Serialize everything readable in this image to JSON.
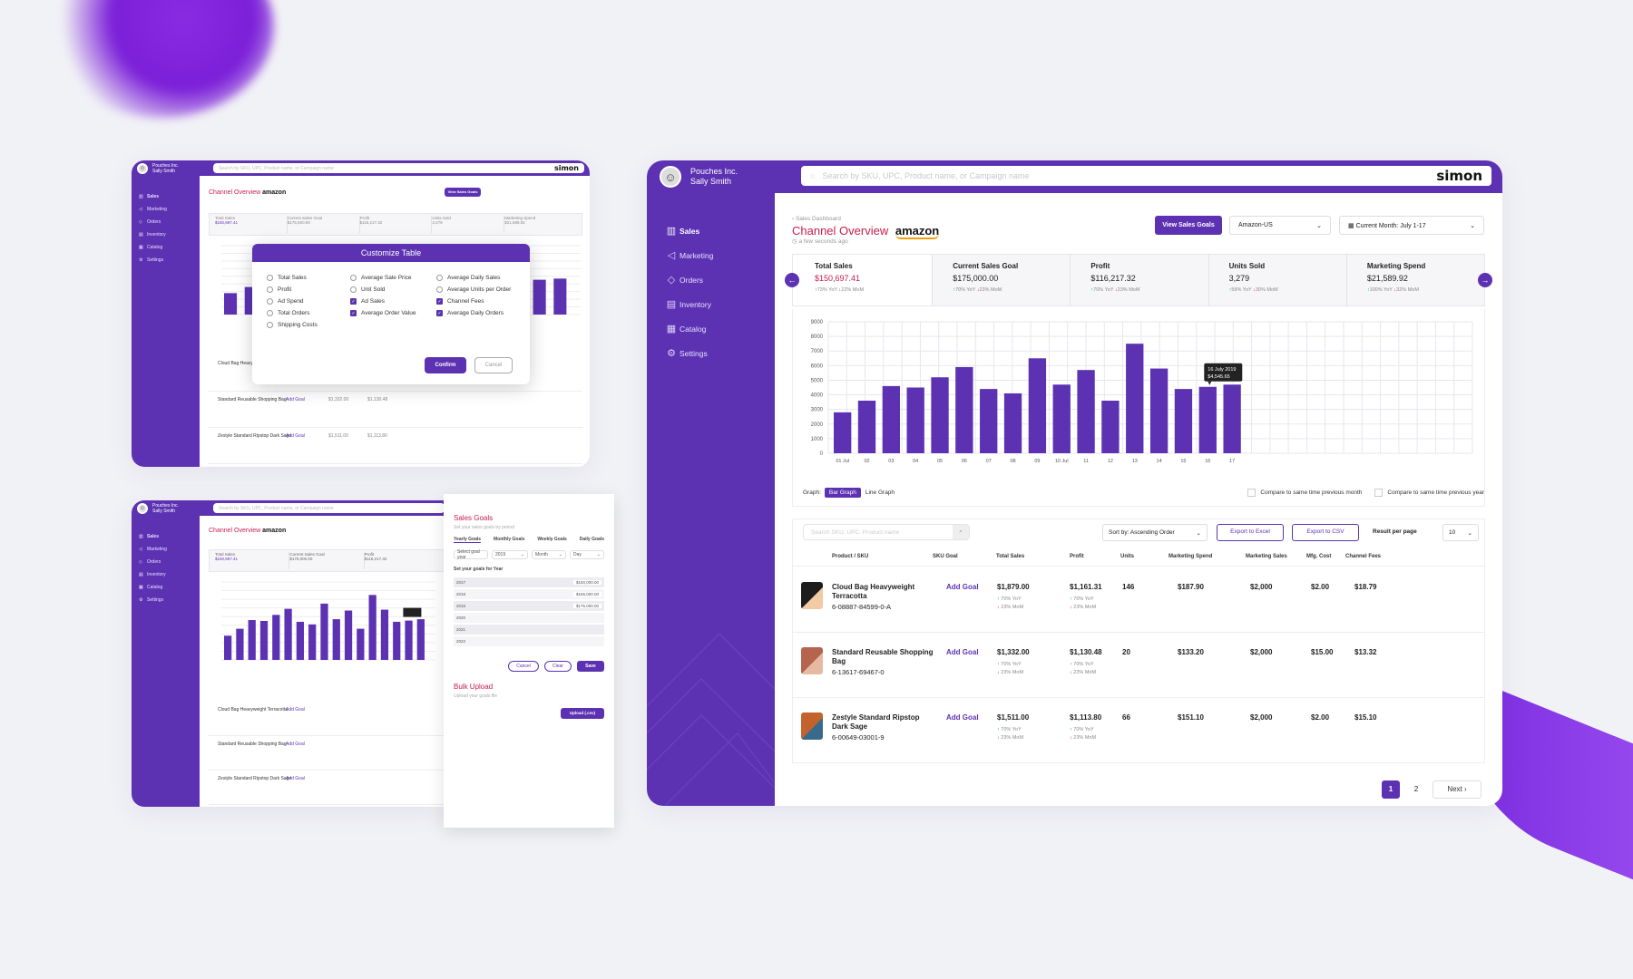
{
  "colors": {
    "primary": "#5c32b3",
    "accent_red": "#c81d4e",
    "up": "#1aa260",
    "down": "#e0284c",
    "bar": "#5c32b3"
  },
  "app": {
    "company": "Pouches Inc.",
    "user": "Sally Smith",
    "logo": "simon",
    "search_placeholder": "Search by SKU, UPC, Product name, or Campaign name"
  },
  "nav": [
    {
      "label": "Sales",
      "icon": "bar-chart-icon"
    },
    {
      "label": "Marketing",
      "icon": "megaphone-icon"
    },
    {
      "label": "Orders",
      "icon": "tag-icon"
    },
    {
      "label": "Inventory",
      "icon": "list-icon"
    },
    {
      "label": "Catalog",
      "icon": "grid-icon"
    },
    {
      "label": "Settings",
      "icon": "gear-icon"
    }
  ],
  "header": {
    "breadcrumb": "‹ Sales Dashboard",
    "title": "Channel Overview",
    "brand": "amazon",
    "updated": "a few seconds ago",
    "goals_btn": "View Sales Goals",
    "marketplace": "Amazon-US",
    "period": "Current Month: July 1-17"
  },
  "kpis": [
    {
      "label": "Total Sales",
      "value": "$150,697.41",
      "yoy": "73% YoY",
      "mom": "22% MoM",
      "highlight": true
    },
    {
      "label": "Current Sales Goal",
      "value": "$175,000.00",
      "yoy": "70% YoY",
      "mom": "23% MoM"
    },
    {
      "label": "Profit",
      "value": "$116,217.32",
      "yoy": "70% YoY",
      "mom": "23% MoM"
    },
    {
      "label": "Units Sold",
      "value": "3,279",
      "yoy": "59% YoY",
      "mom": "30% MoM"
    },
    {
      "label": "Marketing Spend",
      "value": "$21,589.92",
      "yoy": "100% YoY",
      "mom": "32% MoM"
    }
  ],
  "chart_data": {
    "type": "bar",
    "categories": [
      "01 Jul",
      "02",
      "03",
      "04",
      "05",
      "06",
      "07",
      "08",
      "09",
      "10 Jul",
      "11",
      "12",
      "13",
      "14",
      "15",
      "16",
      "17"
    ],
    "values": [
      2800,
      3600,
      4600,
      4500,
      5200,
      5900,
      4400,
      4100,
      6500,
      4700,
      5700,
      3600,
      7500,
      5800,
      4400,
      4545,
      4700
    ],
    "ylim": [
      0,
      9000
    ],
    "yticks": [
      0,
      1000,
      2000,
      3000,
      4000,
      5000,
      6000,
      7000,
      8000,
      9000
    ],
    "tooltip": {
      "date": "16 July 2019",
      "value": "$4,545.65"
    },
    "grid": true
  },
  "chart_controls": {
    "graph_label": "Graph:",
    "bar_graph": "Bar Graph",
    "line_graph": "Line Graph",
    "compare_month": "Compare to same time previous month",
    "compare_year": "Compare to same time previous year"
  },
  "table": {
    "search_placeholder": "Search SKU, UPC, Product name",
    "sort": "Sort by: Ascending Order",
    "export_excel": "Export to Excel",
    "export_csv": "Export to CSV",
    "per_page_label": "Result per page",
    "per_page": "10",
    "columns": [
      "Product / SKU",
      "SKU Goal",
      "Total Sales",
      "Profit",
      "Units",
      "Marketing Spend",
      "Marketing Sales",
      "Mfg. Cost",
      "Channel Fees"
    ],
    "rows": [
      {
        "name": "Cloud Bag Heavyweight Terracotta",
        "sku": "6-08887-84599-0-A",
        "goal": "Add Goal",
        "sales": "$1,879.00",
        "profit": "$1,161.31",
        "units": "146",
        "mspend": "$187.90",
        "msales": "$2,000",
        "mfg": "$2.00",
        "fees": "$18.79",
        "yoy": "70% YoY",
        "mom": "23% MoM"
      },
      {
        "name": "Standard Reusable Shopping Bag",
        "sku": "6-13617-69467-0",
        "goal": "Add Goal",
        "sales": "$1,332.00",
        "profit": "$1,130.48",
        "units": "20",
        "mspend": "$133.20",
        "msales": "$2,000",
        "mfg": "$15.00",
        "fees": "$13.32",
        "yoy": "70% YoY",
        "mom": "23% MoM"
      },
      {
        "name": "Zestyle Standard Ripstop Dark Sage",
        "sku": "6-00649-03001-9",
        "goal": "Add Goal",
        "sales": "$1,511.00",
        "profit": "$1,113.80",
        "units": "66",
        "mspend": "$151.10",
        "msales": "$2,000",
        "mfg": "$2.00",
        "fees": "$15.10",
        "yoy": "70% YoY",
        "mom": "23% MoM"
      }
    ]
  },
  "pagination": {
    "p1": "1",
    "p2": "2",
    "next": "Next"
  },
  "modal": {
    "title": "Customize Table",
    "options": [
      {
        "label": "Total Sales",
        "checked": false
      },
      {
        "label": "Average Sale Price",
        "checked": false
      },
      {
        "label": "Average Daily Sales",
        "checked": false
      },
      {
        "label": "Profit",
        "checked": false
      },
      {
        "label": "Unit Sold",
        "checked": false
      },
      {
        "label": "Average Units per Order",
        "checked": false
      },
      {
        "label": "Ad Spend",
        "checked": false
      },
      {
        "label": "Ad Sales",
        "checked": true
      },
      {
        "label": "Channel Fees",
        "checked": true
      },
      {
        "label": "Total Orders",
        "checked": false
      },
      {
        "label": "Average Order Value",
        "checked": true
      },
      {
        "label": "Average Daily Orders",
        "checked": true
      },
      {
        "label": "Shipping Costs",
        "checked": false
      }
    ],
    "confirm": "Confirm",
    "cancel": "Cancel"
  },
  "goals_panel": {
    "title": "Sales Goals",
    "desc": "Set your sales goals by period",
    "tabs": [
      "Yearly Goals",
      "Monthly Goals",
      "Weekly Goals",
      "Daily Goals"
    ],
    "select_label": "Select goal year",
    "selects": [
      "2019",
      "Month",
      "Day"
    ],
    "subhead": "Set your goals for Year",
    "years": [
      {
        "y": "2017",
        "v": "$150,000.00"
      },
      {
        "y": "2018",
        "v": "$165,000.00"
      },
      {
        "y": "2019",
        "v": "$175,000.00"
      },
      {
        "y": "2020",
        "v": ""
      },
      {
        "y": "2021",
        "v": ""
      },
      {
        "y": "2022",
        "v": ""
      }
    ],
    "buttons": [
      "Cancel",
      "Clear",
      "Save"
    ],
    "bulk_title": "Bulk Upload",
    "bulk_desc": "Upload your goals file",
    "upload": "Upload (.csv)"
  }
}
